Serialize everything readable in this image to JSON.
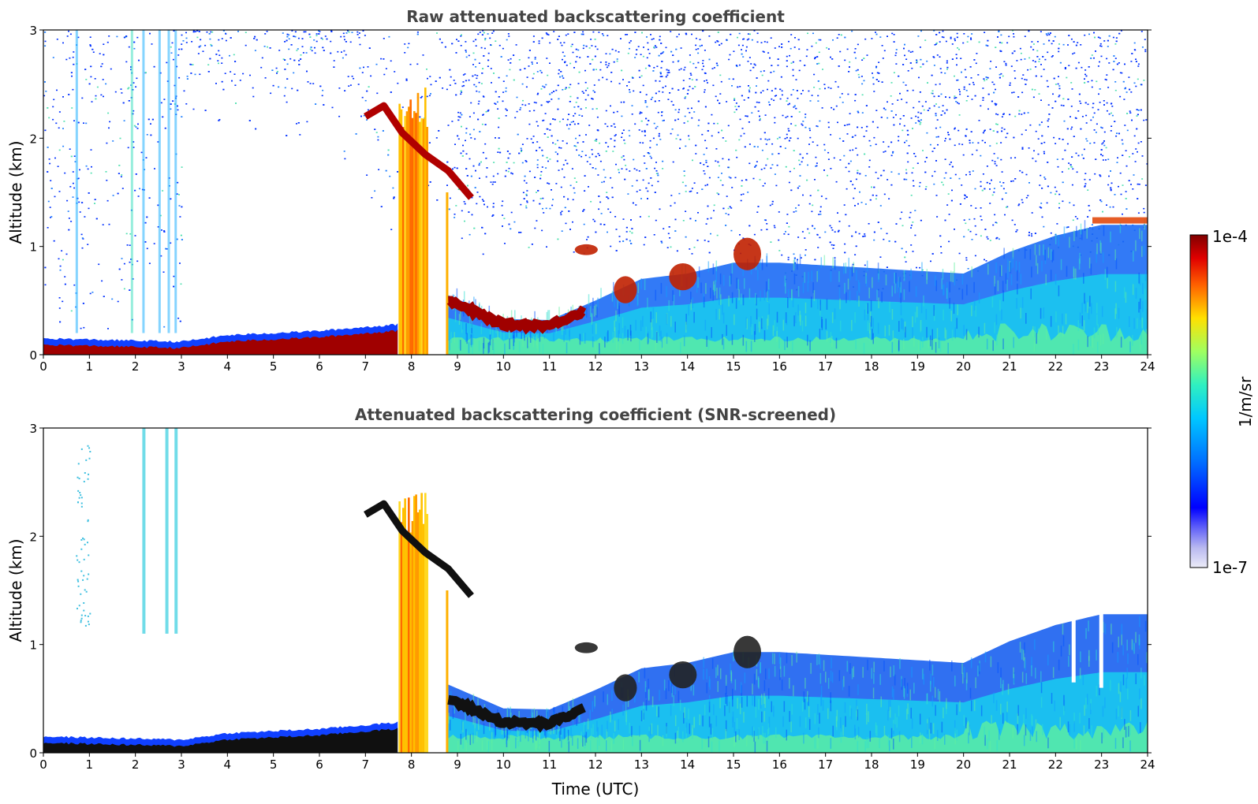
{
  "chart_data": [
    {
      "type": "heatmap",
      "title": "Raw attenuated backscattering coefficient",
      "xlabel": "",
      "ylabel": "Altitude (km)",
      "xlim": [
        0,
        24
      ],
      "ylim": [
        0,
        3
      ],
      "x_ticks": [
        "0",
        "1",
        "2",
        "3",
        "4",
        "5",
        "6",
        "7",
        "8",
        "9",
        "10",
        "11",
        "12",
        "13",
        "14",
        "15",
        "16",
        "17",
        "18",
        "19",
        "20",
        "21",
        "22",
        "23",
        "24"
      ],
      "y_ticks": [
        "0",
        "1",
        "2",
        "3"
      ],
      "colorscale": "jet (log)",
      "features": {
        "surface_aerosol_layer_top_km": [
          {
            "time": 0,
            "alt": 0.15
          },
          {
            "time": 3,
            "alt": 0.12
          },
          {
            "time": 4,
            "alt": 0.18
          },
          {
            "time": 6,
            "alt": 0.22
          },
          {
            "time": 7.7,
            "alt": 0.28
          }
        ],
        "elevated_layer_km": [
          {
            "time": 7.0,
            "alt": 2.2
          },
          {
            "time": 7.4,
            "alt": 2.3
          },
          {
            "time": 7.8,
            "alt": 2.05
          },
          {
            "time": 8.3,
            "alt": 1.85
          },
          {
            "time": 8.8,
            "alt": 1.7
          },
          {
            "time": 9.3,
            "alt": 1.45
          }
        ],
        "boundary_layer_top_km": [
          {
            "time": 8.8,
            "alt": 0.55
          },
          {
            "time": 10,
            "alt": 0.33
          },
          {
            "time": 11,
            "alt": 0.32
          },
          {
            "time": 12,
            "alt": 0.5
          },
          {
            "time": 13,
            "alt": 0.7
          },
          {
            "time": 14,
            "alt": 0.75
          },
          {
            "time": 15,
            "alt": 0.85
          },
          {
            "time": 16,
            "alt": 0.85
          },
          {
            "time": 18,
            "alt": 0.8
          },
          {
            "time": 20,
            "alt": 0.75
          },
          {
            "time": 21,
            "alt": 0.95
          },
          {
            "time": 22,
            "alt": 1.1
          },
          {
            "time": 23,
            "alt": 1.2
          },
          {
            "time": 24,
            "alt": 1.2
          }
        ]
      }
    },
    {
      "type": "heatmap",
      "title": "Attenuated backscattering coefficient (SNR-screened)",
      "xlabel": "Time (UTC)",
      "ylabel": "Altitude (km)",
      "xlim": [
        0,
        24
      ],
      "ylim": [
        0,
        3
      ],
      "x_ticks": [
        "0",
        "1",
        "2",
        "3",
        "4",
        "5",
        "6",
        "7",
        "8",
        "9",
        "10",
        "11",
        "12",
        "13",
        "14",
        "15",
        "16",
        "17",
        "18",
        "19",
        "20",
        "21",
        "22",
        "23",
        "24"
      ],
      "y_ticks": [
        "0",
        "1",
        "2",
        "3"
      ],
      "colorscale": "jet (log)"
    }
  ],
  "colorbar": {
    "label": "1/m/sr",
    "max_label": "1e-4",
    "min_label": "1e-7",
    "colors": [
      "#e8e8f8",
      "#b8b8f0",
      "#7f7ff0",
      "#0000ff",
      "#0040ff",
      "#0090ff",
      "#00d0ff",
      "#20f0d0",
      "#80ff80",
      "#d0ff30",
      "#ffe000",
      "#ff9000",
      "#ff3000",
      "#d00000",
      "#800000"
    ]
  }
}
